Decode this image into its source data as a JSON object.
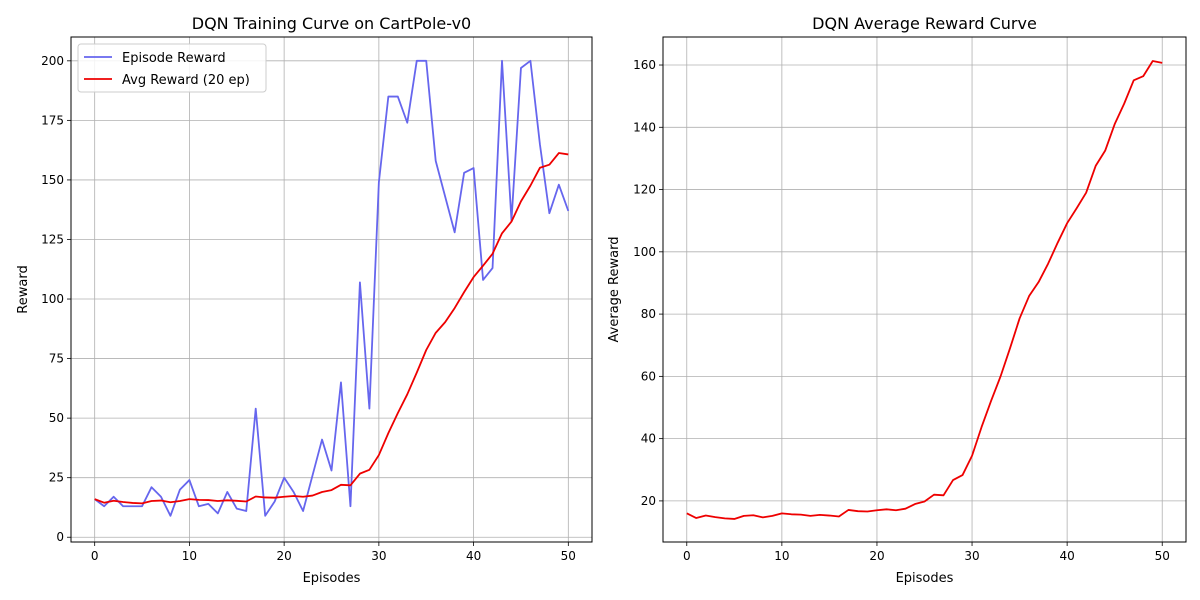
{
  "colors": {
    "episode": "#6666ee",
    "avg": "#ee0000",
    "grid": "#b0b0b0"
  },
  "chart_data": [
    {
      "type": "line",
      "title": "DQN Training Curve on CartPole-v0",
      "xlabel": "Episodes",
      "ylabel": "Reward",
      "xlim": [
        -2.5,
        52.5
      ],
      "ylim": [
        -2,
        210
      ],
      "xticks": [
        0,
        10,
        20,
        30,
        40,
        50
      ],
      "yticks": [
        0,
        25,
        50,
        75,
        100,
        125,
        150,
        175,
        200
      ],
      "grid": true,
      "legend_position": "top-left",
      "series": [
        {
          "name": "Episode Reward",
          "color": "#6666ee",
          "x": [
            0,
            1,
            2,
            3,
            4,
            5,
            6,
            7,
            8,
            9,
            10,
            11,
            12,
            13,
            14,
            15,
            16,
            17,
            18,
            19,
            20,
            21,
            22,
            23,
            24,
            25,
            26,
            27,
            28,
            29,
            30,
            31,
            32,
            33,
            34,
            35,
            36,
            37,
            38,
            39,
            40,
            41,
            42,
            43,
            44,
            45,
            46,
            47,
            48,
            49,
            50
          ],
          "y": [
            16,
            13,
            17,
            13,
            13,
            13,
            21,
            17,
            9,
            20,
            24,
            13,
            14,
            10,
            19,
            12,
            11,
            54,
            9,
            15,
            25,
            19,
            11,
            26,
            41,
            28,
            65,
            13,
            107,
            54,
            149,
            185,
            185,
            174,
            200,
            200,
            158,
            143,
            128,
            153,
            155,
            108,
            113,
            200,
            133,
            197,
            200,
            165,
            136,
            148,
            137
          ]
        },
        {
          "name": "Avg Reward (20 ep)",
          "color": "#ee0000",
          "x": [
            0,
            1,
            2,
            3,
            4,
            5,
            6,
            7,
            8,
            9,
            10,
            11,
            12,
            13,
            14,
            15,
            16,
            17,
            18,
            19,
            20,
            21,
            22,
            23,
            24,
            25,
            26,
            27,
            28,
            29,
            30,
            31,
            32,
            33,
            34,
            35,
            36,
            37,
            38,
            39,
            40,
            41,
            42,
            43,
            44,
            45,
            46,
            47,
            48,
            49,
            50
          ],
          "y": [
            16,
            14.5,
            15.3,
            14.8,
            14.4,
            14.2,
            15.2,
            15.4,
            14.7,
            15.2,
            16,
            15.7,
            15.6,
            15.2,
            15.5,
            15.3,
            15,
            17.1,
            16.7,
            16.6,
            17,
            17.3,
            17,
            17.5,
            19,
            19.8,
            22,
            21.8,
            26.7,
            28.3,
            34.5,
            43.7,
            52.1,
            60,
            69.1,
            78.6,
            85.8,
            90.3,
            96.2,
            102.9,
            109.2,
            114,
            119,
            127.6,
            132.5,
            141,
            147.6,
            155.1,
            156.4,
            161.3,
            160.7
          ]
        }
      ]
    },
    {
      "type": "line",
      "title": "DQN Average Reward Curve",
      "xlabel": "Episodes",
      "ylabel": "Average Reward",
      "xlim": [
        -2.5,
        52.5
      ],
      "ylim": [
        6.8,
        169
      ],
      "xticks": [
        0,
        10,
        20,
        30,
        40,
        50
      ],
      "yticks": [
        20,
        40,
        60,
        80,
        100,
        120,
        140,
        160
      ],
      "grid": true,
      "series": [
        {
          "color": "#ee0000",
          "x": [
            0,
            1,
            2,
            3,
            4,
            5,
            6,
            7,
            8,
            9,
            10,
            11,
            12,
            13,
            14,
            15,
            16,
            17,
            18,
            19,
            20,
            21,
            22,
            23,
            24,
            25,
            26,
            27,
            28,
            29,
            30,
            31,
            32,
            33,
            34,
            35,
            36,
            37,
            38,
            39,
            40,
            41,
            42,
            43,
            44,
            45,
            46,
            47,
            48,
            49,
            50
          ],
          "y": [
            16,
            14.5,
            15.3,
            14.8,
            14.4,
            14.2,
            15.2,
            15.4,
            14.7,
            15.2,
            16,
            15.7,
            15.6,
            15.2,
            15.5,
            15.3,
            15,
            17.1,
            16.7,
            16.6,
            17,
            17.3,
            17,
            17.5,
            19,
            19.8,
            22,
            21.8,
            26.7,
            28.3,
            34.5,
            43.7,
            52.1,
            60,
            69.1,
            78.6,
            85.8,
            90.3,
            96.2,
            102.9,
            109.2,
            114,
            119,
            127.6,
            132.5,
            141,
            147.6,
            155.1,
            156.4,
            161.3,
            160.7
          ]
        }
      ]
    }
  ]
}
